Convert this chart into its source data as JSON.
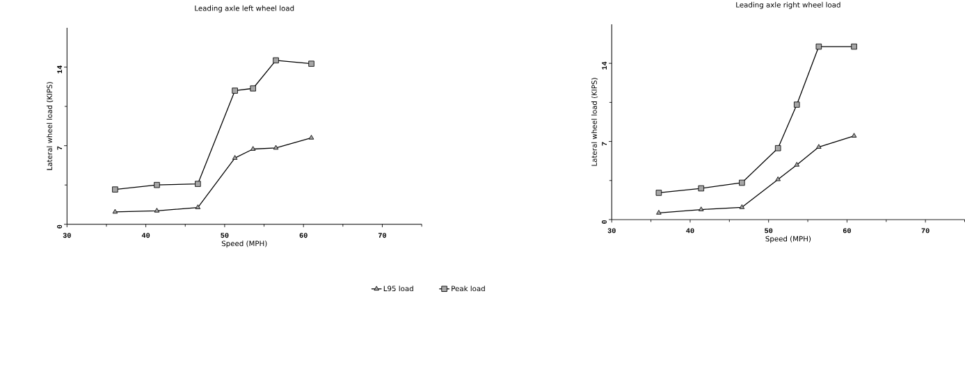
{
  "chart_data": [
    {
      "type": "line",
      "title": "Leading axle left wheel load",
      "xlabel": "Speed (MPH)",
      "ylabel": "Lateral wheel load (KIPS)",
      "xlim": [
        30,
        75
      ],
      "xticks": [
        30,
        40,
        50,
        60,
        70
      ],
      "ylim": [
        0,
        17.5
      ],
      "yticks": [
        0,
        7,
        14
      ],
      "legend": "bottom",
      "series": [
        {
          "name": "L95 load",
          "color": "#000000",
          "marker": "triangle",
          "x": [
            36.1,
            41.4,
            46.6,
            51.3,
            53.6,
            56.5,
            61.0
          ],
          "values": [
            1.1,
            1.2,
            1.5,
            5.9,
            6.7,
            6.8,
            7.7
          ]
        },
        {
          "name": "Peak load",
          "color": "#000000",
          "marker": "square",
          "x": [
            36.1,
            41.4,
            46.6,
            51.3,
            53.6,
            56.5,
            61.0
          ],
          "values": [
            3.1,
            3.5,
            3.6,
            11.9,
            12.1,
            14.6,
            14.3
          ]
        }
      ]
    },
    {
      "type": "line",
      "title": "Leading axle right wheel load",
      "xlabel": "Speed (MPH)",
      "ylabel": "Lateral wheel load (KIPS)",
      "xlim": [
        30,
        75
      ],
      "xticks": [
        30,
        40,
        50,
        60,
        70
      ],
      "ylim": [
        0,
        17.5
      ],
      "yticks": [
        0,
        7,
        14
      ],
      "series": [
        {
          "color": "#000000",
          "marker": "triangle",
          "x": [
            36.0,
            41.4,
            46.6,
            51.2,
            53.6,
            56.4,
            60.9
          ],
          "values": [
            0.6,
            0.9,
            1.1,
            3.6,
            4.9,
            6.5,
            7.5
          ]
        },
        {
          "color": "#000000",
          "marker": "square",
          "x": [
            36.0,
            41.4,
            46.6,
            51.2,
            53.6,
            56.4,
            60.9
          ],
          "values": [
            2.4,
            2.8,
            3.3,
            6.4,
            10.3,
            15.5,
            15.5
          ]
        }
      ]
    }
  ]
}
